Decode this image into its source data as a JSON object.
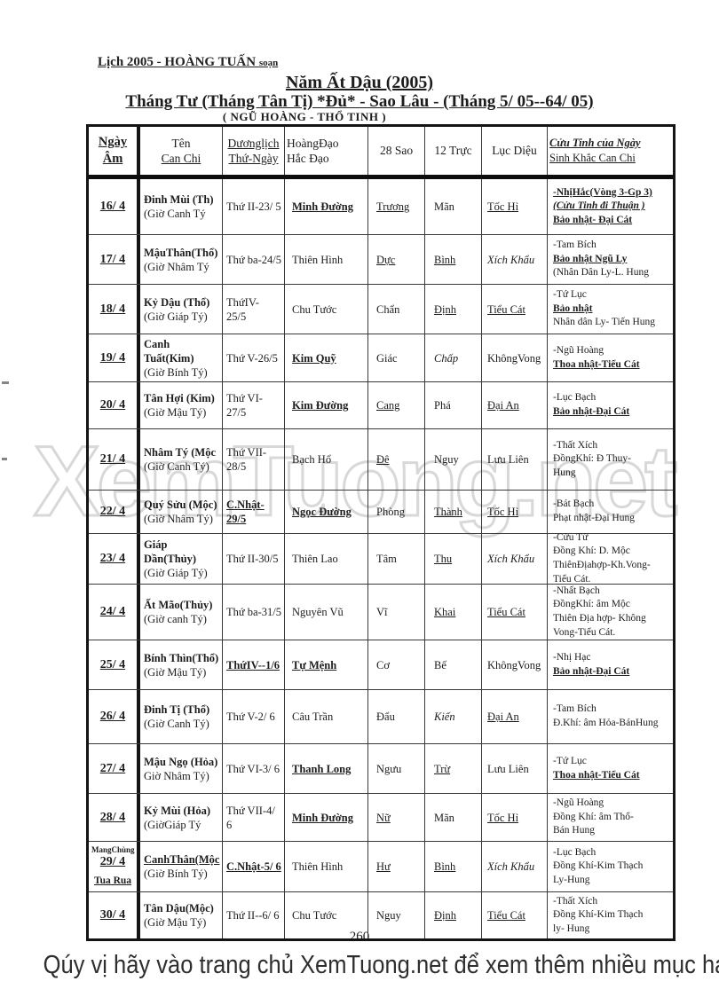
{
  "page": {
    "book_header_main": "Lịch 2005 - HOÀNG TUẤN ",
    "book_header_small": "soạn",
    "title": "Năm Ất Dậu (2005)",
    "subtitle": "Tháng Tư (Tháng Tân Tị) *Đủ* - Sao Lâu - (Tháng 5/ 05--64/ 05)",
    "subheading": "( NGŨ HOÀNG - THỔ TINH )",
    "watermark": "XemTuong.net",
    "page_number": "260",
    "footer": {
      "prefix": "Qúy vị hãy vào trang chủ ",
      "site": "XemTuong.net",
      "suffix": " để xem thêm nhiều mục hay khác"
    }
  },
  "colors": {
    "ink": "#1c1c1c",
    "watermark_stroke": "#d8d8d8"
  },
  "table": {
    "header": {
      "col1": [
        "Ngày",
        "Âm"
      ],
      "col2": [
        "Tên",
        "Can Chi"
      ],
      "col3": [
        "Dươnglịch",
        "Thứ-Ngày"
      ],
      "col4": [
        "HoàngĐạo",
        "Hắc Đạo"
      ],
      "col5": "28 Sao",
      "col6": "12 Trực",
      "col7": "Lục Diệu",
      "col8": [
        "Cửu Tinh của Ngày",
        "Sinh Khắc Can Chi"
      ]
    },
    "rows": [
      {
        "day": "16/ 4",
        "canchi": [
          {
            "t": "Đinh Mùi (Th)",
            "b": 1
          },
          {
            "t": "(Giờ Canh Tý"
          }
        ],
        "solar": {
          "t": "Thứ II-23/ 5"
        },
        "hoangdao": {
          "t": "Minh Đường",
          "b": 1,
          "u": 1
        },
        "sao": {
          "t": "Trương",
          "u": 1
        },
        "truc": {
          "t": "Mãn"
        },
        "luc": {
          "t": "Tốc Hỉ",
          "u": 1
        },
        "cuu": [
          {
            "t": "-NhịHắc(Vòng 3-Gp 3)",
            "b": 1,
            "u": 1
          },
          {
            "t": "(Cửu Tinh đi Thuận )",
            "b": 1,
            "i": 1,
            "u": 1
          },
          {
            "t": "Bảo nhật- Đại Cát",
            "b": 1,
            "u": 1
          }
        ]
      },
      {
        "day": "17/ 4",
        "canchi": [
          {
            "t": "MậuThân(Thổ)",
            "b": 1
          },
          {
            "t": "(Giờ Nhâm Tý"
          }
        ],
        "solar": {
          "t": "Thứ ba-24/5"
        },
        "hoangdao": {
          "t": "Thiên Hình"
        },
        "sao": {
          "t": "Dực",
          "u": 1
        },
        "truc": {
          "t": "Bình",
          "u": 1
        },
        "luc": {
          "t": "Xích Khẩu",
          "i": 1
        },
        "cuu": [
          {
            "t": "-Tam Bích"
          },
          {
            "t": "Bảo nhật Ngũ Ly",
            "b": 1,
            "u": 1
          },
          {
            "t": "(Nhân Dân Ly-L. Hung"
          }
        ]
      },
      {
        "day": "18/ 4",
        "canchi": [
          {
            "t": "Kỷ Dậu (Thổ)",
            "b": 1
          },
          {
            "t": "(Giờ Giáp Tý)"
          }
        ],
        "solar": {
          "t": "ThứIV- 25/5"
        },
        "hoangdao": {
          "t": "Chu Tước"
        },
        "sao": {
          "t": "Chẩn"
        },
        "truc": {
          "t": "Định",
          "u": 1
        },
        "luc": {
          "t": "Tiểu Cát",
          "u": 1
        },
        "cuu": [
          {
            "t": "-Tứ Lục"
          },
          {
            "t": "Bảo nhật",
            "b": 1,
            "u": 1
          },
          {
            "t": "Nhân dân Ly- Tiến Hung"
          }
        ]
      },
      {
        "day": "19/ 4",
        "canchi": [
          {
            "t": "Canh Tuất(Kim)",
            "b": 1
          },
          {
            "t": "(Giờ Bính Tý)"
          }
        ],
        "solar": {
          "t": "Thứ V-26/5"
        },
        "hoangdao": {
          "t": "Kim Quỹ",
          "b": 1,
          "u": 1
        },
        "sao": {
          "t": "Giác"
        },
        "truc": {
          "t": "Chấp",
          "i": 1
        },
        "luc": {
          "t": "KhôngVong"
        },
        "cuu": [
          {
            "t": "-Ngũ Hoàng"
          },
          {
            "t": "Thoa nhật-Tiểu Cát",
            "b": 1,
            "u": 1
          }
        ]
      },
      {
        "day": "20/ 4",
        "canchi": [
          {
            "t": "Tân Hợi (Kim)",
            "b": 1
          },
          {
            "t": "(Giờ Mậu Tý)"
          }
        ],
        "solar": {
          "t": "Thứ VI-27/5"
        },
        "hoangdao": {
          "t": "Kim Đường",
          "b": 1,
          "u": 1
        },
        "sao": {
          "t": "Cang",
          "u": 1
        },
        "truc": {
          "t": "Phá"
        },
        "luc": {
          "t": "Đại An",
          "u": 1
        },
        "cuu": [
          {
            "t": "-Lục Bạch"
          },
          {
            "t": "Bảo nhật-Đại Cát",
            "b": 1,
            "u": 1
          }
        ]
      },
      {
        "day": "21/ 4",
        "canchi": [
          {
            "t": "Nhâm Tý (Mộc",
            "b": 1
          },
          {
            "t": "(Giờ Canh Tý)"
          }
        ],
        "solar": {
          "t": "Thứ VII-28/5"
        },
        "hoangdao": {
          "t": "Bạch Hổ"
        },
        "sao": {
          "t": "Đê",
          "u": 1
        },
        "truc": {
          "t": "Nguy"
        },
        "luc": {
          "t": "Lưu Liên"
        },
        "cuu": [
          {
            "t": "-Thất Xích"
          },
          {
            "t": "ĐồngKhí: Đ Thuy-"
          },
          {
            "t": "Hung"
          }
        ]
      },
      {
        "day": "22/ 4",
        "canchi": [
          {
            "t": "Quý Sửu (Mộc)",
            "b": 1
          },
          {
            "t": "(Giờ Nhâm Tý)"
          }
        ],
        "solar": {
          "t": "C.Nhật-29/5",
          "b": 1,
          "u": 1
        },
        "hoangdao": {
          "t": "Ngọc Đường",
          "b": 1,
          "u": 1
        },
        "sao": {
          "t": "Phòng"
        },
        "truc": {
          "t": "Thành",
          "u": 1
        },
        "luc": {
          "t": "Tốc Hỉ",
          "u": 1
        },
        "cuu": [
          {
            "t": "-Bát Bạch"
          },
          {
            "t": "Phạt nhật-Đại Hung"
          }
        ]
      },
      {
        "day": "23/ 4",
        "canchi": [
          {
            "t": "Giáp Dần(Thủy)",
            "b": 1
          },
          {
            "t": "(Giờ Giáp Tý)"
          }
        ],
        "solar": {
          "t": "Thứ II-30/5"
        },
        "hoangdao": {
          "t": "Thiên Lao"
        },
        "sao": {
          "t": "Tâm"
        },
        "truc": {
          "t": "Thu",
          "u": 1
        },
        "luc": {
          "t": "Xích Khẩu",
          "i": 1
        },
        "cuu": [
          {
            "t": "-Cửu Tử"
          },
          {
            "t": "Đồng Khí: D. Mộc"
          },
          {
            "t": "ThiênĐịahợp-Kh.Vong-"
          },
          {
            "t": "Tiểu Cát."
          }
        ]
      },
      {
        "day": "24/ 4",
        "canchi": [
          {
            "t": "Ất Mão(Thủy)",
            "b": 1
          },
          {
            "t": "(Giờ canh Tý)"
          }
        ],
        "solar": {
          "t": "Thứ ba-31/5"
        },
        "hoangdao": {
          "t": "Nguyên Vũ"
        },
        "sao": {
          "t": "Vĩ"
        },
        "truc": {
          "t": "Khai",
          "u": 1
        },
        "luc": {
          "t": "Tiểu Cát",
          "u": 1
        },
        "cuu": [
          {
            "t": "-Nhất Bạch"
          },
          {
            "t": "ĐồngKhí: âm Mộc"
          },
          {
            "t": "Thiên Địa hợp- Không"
          },
          {
            "t": "Vong-Tiểu Cát."
          }
        ]
      },
      {
        "day": "25/ 4",
        "canchi": [
          {
            "t": "Bính Thìn(Thổ)",
            "b": 1
          },
          {
            "t": "(Giờ Mậu Tý)"
          }
        ],
        "solar": {
          "t": "ThứIV--1/6",
          "b": 1,
          "u": 1
        },
        "hoangdao": {
          "t": "Tự Mệnh",
          "b": 1,
          "u": 1
        },
        "sao": {
          "t": "Cơ"
        },
        "truc": {
          "t": "Bế"
        },
        "luc": {
          "t": "KhôngVong"
        },
        "cuu": [
          {
            "t": "-Nhị Hạc"
          },
          {
            "t": "Bảo nhật-Đại Cát",
            "b": 1,
            "u": 1
          }
        ]
      },
      {
        "day": "26/ 4",
        "canchi": [
          {
            "t": "Đinh Tị (Thổ)",
            "b": 1
          },
          {
            "t": "(Giờ Canh Tý)"
          }
        ],
        "solar": {
          "t": "Thứ V-2/ 6"
        },
        "hoangdao": {
          "t": "Câu Trần"
        },
        "sao": {
          "t": "Đẩu"
        },
        "truc": {
          "t": "Kiến",
          "i": 1
        },
        "luc": {
          "t": "Đại An",
          "u": 1
        },
        "cuu": [
          {
            "t": "-Tam Bích"
          },
          {
            "t": "Đ.Khí: âm Hỏa-BánHung"
          }
        ]
      },
      {
        "day": "27/ 4",
        "canchi": [
          {
            "t": "Mậu Ngọ (Hỏa)",
            "b": 1
          },
          {
            "t": "Giờ Nhâm Tý)"
          }
        ],
        "solar": {
          "t": "Thứ VI-3/ 6"
        },
        "hoangdao": {
          "t": "Thanh Long",
          "b": 1,
          "u": 1
        },
        "sao": {
          "t": "Ngưu"
        },
        "truc": {
          "t": "Trừ",
          "u": 1
        },
        "luc": {
          "t": "Lưu Liên"
        },
        "cuu": [
          {
            "t": "-Tứ Lục"
          },
          {
            "t": "Thoa nhật-Tiểu Cát",
            "b": 1,
            "u": 1
          }
        ]
      },
      {
        "day": "28/ 4",
        "canchi": [
          {
            "t": "Kỷ Mùi (Hỏa)",
            "b": 1
          },
          {
            "t": "(GiờGiáp Tý"
          }
        ],
        "solar": {
          "t": "Thứ VII-4/ 6"
        },
        "hoangdao": {
          "t": "Minh Đường",
          "b": 1,
          "u": 1
        },
        "sao": {
          "t": "Nữ",
          "u": 1
        },
        "truc": {
          "t": "Mãn"
        },
        "luc": {
          "t": "Tốc Hỉ",
          "u": 1
        },
        "cuu": [
          {
            "t": "-Ngũ Hoàng"
          },
          {
            "t": "Đồng Khí: âm Thổ-"
          },
          {
            "t": "Bán Hung"
          }
        ]
      },
      {
        "day": "29/ 4",
        "note_top": "MangChùng",
        "note_bottom": "Tua Rua",
        "canchi": [
          {
            "t": "CanhThân(Mộc",
            "b": 1,
            "u": 1
          },
          {
            "t": "(Giờ Bính Tý)"
          }
        ],
        "solar": {
          "t": "C.Nhật-5/ 6",
          "b": 1,
          "u": 1
        },
        "hoangdao": {
          "t": "Thiên Hình"
        },
        "sao": {
          "t": "Hư",
          "u": 1
        },
        "truc": {
          "t": "Bình",
          "u": 1
        },
        "luc": {
          "t": "Xích Khẩu",
          "i": 1
        },
        "cuu": [
          {
            "t": "-Lục Bạch"
          },
          {
            "t": "Đồng Khí-Kim Thạch"
          },
          {
            "t": "Ly-Hung"
          }
        ]
      },
      {
        "day": "30/ 4",
        "canchi": [
          {
            "t": "Tân Dậu(Mộc)",
            "b": 1
          },
          {
            "t": "(Giờ  Mậu Tý)"
          }
        ],
        "solar": {
          "t": "Thứ II--6/ 6"
        },
        "hoangdao": {
          "t": "Chu Tước"
        },
        "sao": {
          "t": "Nguy"
        },
        "truc": {
          "t": "Định",
          "u": 1
        },
        "luc": {
          "t": "Tiểu Cát",
          "u": 1
        },
        "cuu": [
          {
            "t": "-Thất Xích"
          },
          {
            "t": "Đồng Khí-Kim Thạch"
          },
          {
            "t": "ly- Hung"
          }
        ]
      }
    ]
  }
}
